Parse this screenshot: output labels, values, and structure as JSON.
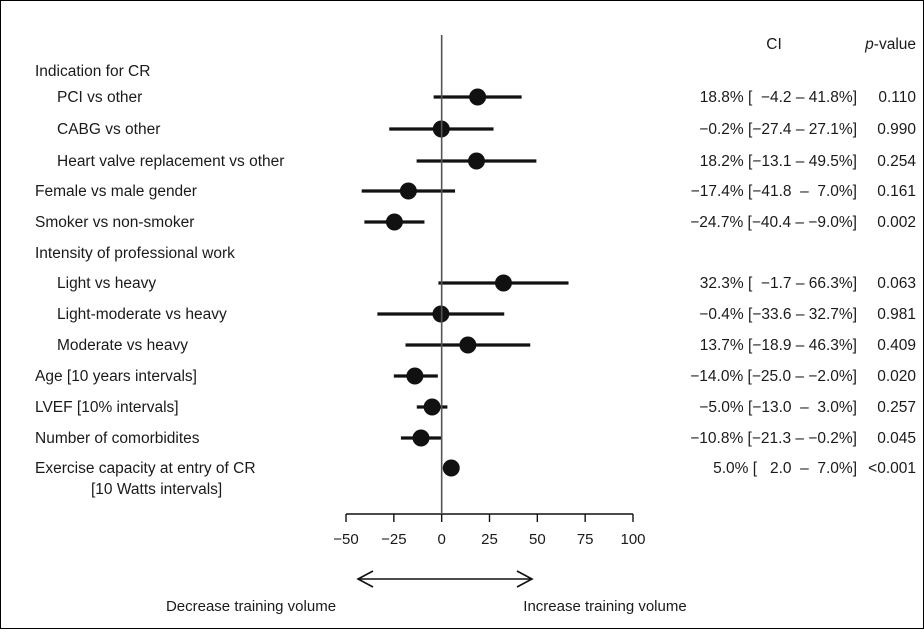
{
  "chart_data": {
    "type": "forest",
    "x_axis": {
      "ticks": [
        -50,
        -25,
        0,
        25,
        50,
        75,
        100
      ],
      "tick_labels": [
        "−50",
        "−25",
        "0",
        "25",
        "50",
        "75",
        "100"
      ],
      "xlim": [
        -50,
        100
      ],
      "reference_line": 0
    },
    "header": {
      "ci": "CI",
      "p_prefix": "p",
      "p_suffix": "-value"
    },
    "direction_labels": {
      "left": "Decrease training volume",
      "right": "Increase training volume"
    },
    "rows": [
      {
        "label": "Indication for CR",
        "group": true
      },
      {
        "label": "PCI vs other",
        "indent": true,
        "estimate": 18.8,
        "lower": -4.2,
        "upper": 41.8,
        "ci_text": "18.8% [  −4.2 – 41.8%]",
        "p": "0.110"
      },
      {
        "label": "CABG vs other",
        "indent": true,
        "estimate": -0.2,
        "lower": -27.4,
        "upper": 27.1,
        "ci_text": "−0.2% [−27.4 – 27.1%]",
        "p": "0.990"
      },
      {
        "label": "Heart valve replacement vs other",
        "indent": true,
        "estimate": 18.2,
        "lower": -13.1,
        "upper": 49.5,
        "ci_text": "18.2% [−13.1 – 49.5%]",
        "p": "0.254"
      },
      {
        "label": "Female  vs male gender",
        "estimate": -17.4,
        "lower": -41.8,
        "upper": 7.0,
        "ci_text": "−17.4% [−41.8  –  7.0%]",
        "p": "0.161"
      },
      {
        "label": "Smoker  vs non-smoker",
        "estimate": -24.7,
        "lower": -40.4,
        "upper": -9.0,
        "ci_text": "−24.7% [−40.4 – −9.0%]",
        "p": "0.002"
      },
      {
        "label": "Intensity of professional work",
        "group": true
      },
      {
        "label": "Light vs heavy",
        "indent": true,
        "estimate": 32.3,
        "lower": -1.7,
        "upper": 66.3,
        "ci_text": "32.3% [  −1.7 – 66.3%]",
        "p": "0.063"
      },
      {
        "label": "Light-moderate vs heavy",
        "indent": true,
        "estimate": -0.4,
        "lower": -33.6,
        "upper": 32.7,
        "ci_text": "−0.4% [−33.6 – 32.7%]",
        "p": "0.981"
      },
      {
        "label": "Moderate vs heavy",
        "indent": true,
        "estimate": 13.7,
        "lower": -18.9,
        "upper": 46.3,
        "ci_text": "13.7% [−18.9 – 46.3%]",
        "p": "0.409"
      },
      {
        "label": "Age [10 years intervals]",
        "estimate": -14.0,
        "lower": -25.0,
        "upper": -2.0,
        "ci_text": "−14.0% [−25.0 – −2.0%]",
        "p": "0.020"
      },
      {
        "label": "LVEF [10% intervals]",
        "estimate": -5.0,
        "lower": -13.0,
        "upper": 3.0,
        "ci_text": "−5.0% [−13.0  –  3.0%]",
        "p": "0.257"
      },
      {
        "label": "Number of comorbidites",
        "estimate": -10.8,
        "lower": -21.3,
        "upper": -0.2,
        "ci_text": "−10.8% [−21.3 – −0.2%]",
        "p": "0.045"
      },
      {
        "label": "Exercise capacity at entry of CR",
        "label2": "[10 Watts intervals]",
        "estimate": 5.0,
        "lower": 2.0,
        "upper": 7.0,
        "ci_text": "5.0% [   2.0  –  7.0%]",
        "p": "<0.001"
      }
    ]
  }
}
